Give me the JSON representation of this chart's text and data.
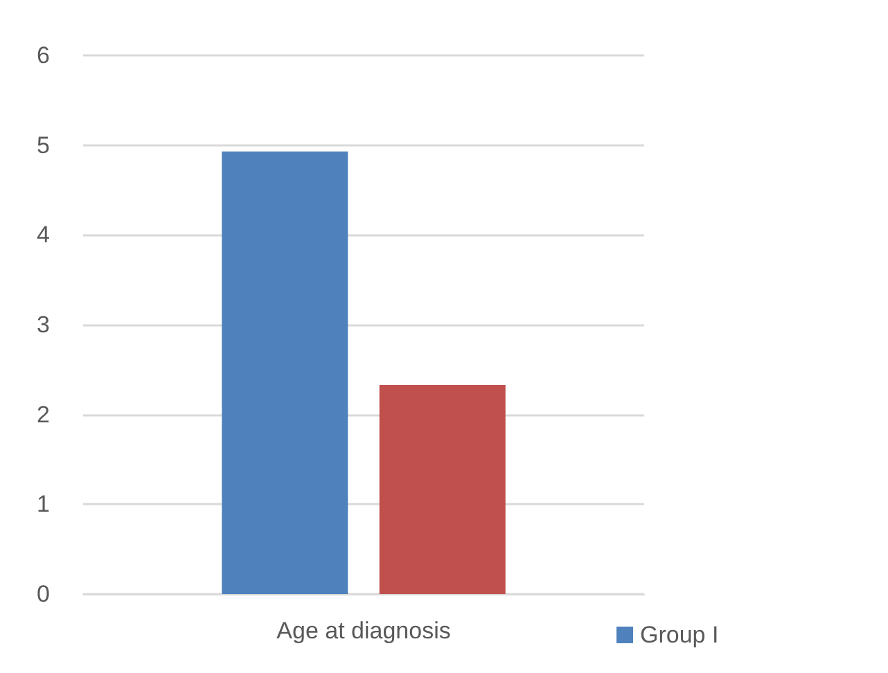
{
  "chart_data": {
    "type": "bar",
    "categories": [
      "Age at diagnosis"
    ],
    "series": [
      {
        "name": "Group I",
        "color": "#4f81bd",
        "values": [
          4.93
        ]
      },
      {
        "color": "#c0504d",
        "values": [
          2.33
        ]
      }
    ],
    "ylim": [
      0,
      6
    ],
    "yticks": [
      0,
      1,
      2,
      3,
      4,
      5,
      6
    ],
    "grid": "y",
    "legend": "bottom"
  }
}
